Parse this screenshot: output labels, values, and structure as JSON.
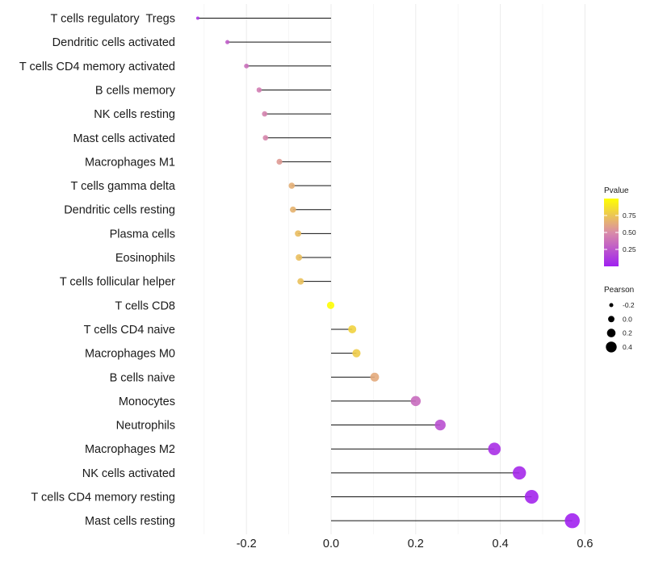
{
  "chart_data": {
    "type": "lollipop",
    "title": "",
    "xlabel": "",
    "ylabel": "",
    "xlim": [
      -0.3,
      0.6
    ],
    "xticks": [
      -0.2,
      0.0,
      0.2,
      0.4,
      0.6
    ],
    "xtick_labels": [
      "-0.2",
      "0.0",
      "0.2",
      "0.4",
      "0.6"
    ],
    "grid": true,
    "points": [
      {
        "label": "T cells regulatory  Tregs",
        "pearson": -0.315,
        "pvalue": 0.1
      },
      {
        "label": "Dendritic cells activated",
        "pearson": -0.245,
        "pvalue": 0.28
      },
      {
        "label": "T cells CD4 memory activated",
        "pearson": -0.2,
        "pvalue": 0.37
      },
      {
        "label": "B cells memory",
        "pearson": -0.17,
        "pvalue": 0.43
      },
      {
        "label": "NK cells resting",
        "pearson": -0.157,
        "pvalue": 0.46
      },
      {
        "label": "Mast cells activated",
        "pearson": -0.155,
        "pvalue": 0.47
      },
      {
        "label": "Macrophages M1",
        "pearson": -0.122,
        "pvalue": 0.56
      },
      {
        "label": "T cells gamma delta",
        "pearson": -0.093,
        "pvalue": 0.65
      },
      {
        "label": "Dendritic cells resting",
        "pearson": -0.09,
        "pvalue": 0.67
      },
      {
        "label": "Plasma cells",
        "pearson": -0.078,
        "pvalue": 0.71
      },
      {
        "label": "Eosinophils",
        "pearson": -0.076,
        "pvalue": 0.72
      },
      {
        "label": "T cells follicular helper",
        "pearson": -0.072,
        "pvalue": 0.73
      },
      {
        "label": "T cells CD8",
        "pearson": -0.001,
        "pvalue": 0.99
      },
      {
        "label": "T cells CD4 naive",
        "pearson": 0.05,
        "pvalue": 0.81
      },
      {
        "label": "Macrophages M0",
        "pearson": 0.06,
        "pvalue": 0.78
      },
      {
        "label": "B cells naive",
        "pearson": 0.103,
        "pvalue": 0.63
      },
      {
        "label": "Monocytes",
        "pearson": 0.2,
        "pvalue": 0.35
      },
      {
        "label": "Neutrophils",
        "pearson": 0.258,
        "pvalue": 0.22
      },
      {
        "label": "Macrophages M2",
        "pearson": 0.386,
        "pvalue": 0.07
      },
      {
        "label": "NK cells activated",
        "pearson": 0.445,
        "pvalue": 0.04
      },
      {
        "label": "T cells CD4 memory resting",
        "pearson": 0.474,
        "pvalue": 0.03
      },
      {
        "label": "Mast cells resting",
        "pearson": 0.57,
        "pvalue": 0.01
      }
    ],
    "color_legend": {
      "title": "Pvalue",
      "domain": [
        0,
        1
      ],
      "ticks": [
        0.25,
        0.5,
        0.75
      ],
      "tick_labels": [
        "0.25",
        "0.50",
        "0.75"
      ],
      "low_color": "#a020f0",
      "mid_color": "#d98ca8",
      "high_color": "#ffff00"
    },
    "size_legend": {
      "title": "Pearson",
      "values": [
        -0.2,
        0.0,
        0.2,
        0.4
      ],
      "labels": [
        "-0.2",
        "0.0",
        "0.2",
        "0.4"
      ]
    }
  }
}
